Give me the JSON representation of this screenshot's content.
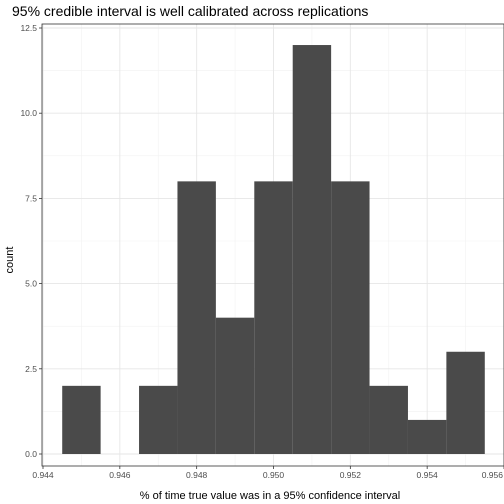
{
  "chart_data": {
    "type": "bar",
    "title": "95% credible interval is well calibrated across replications",
    "xlabel": "% of time true value was in a 95% confidence interval",
    "ylabel": "count",
    "xlim": [
      0.944,
      0.956
    ],
    "ylim": [
      0,
      12.5
    ],
    "x_ticks": [
      "0.944",
      "0.946",
      "0.948",
      "0.950",
      "0.952",
      "0.954",
      "0.956"
    ],
    "x_tick_values": [
      0.944,
      0.946,
      0.948,
      0.95,
      0.952,
      0.954,
      0.956
    ],
    "y_ticks": [
      "0.0",
      "2.5",
      "5.0",
      "7.5",
      "10.0",
      "12.5"
    ],
    "y_tick_values": [
      0.0,
      2.5,
      5.0,
      7.5,
      10.0,
      12.5
    ],
    "bins": [
      {
        "start": 0.9445,
        "end": 0.9455,
        "count": 2
      },
      {
        "start": 0.9455,
        "end": 0.9465,
        "count": 0
      },
      {
        "start": 0.9465,
        "end": 0.9475,
        "count": 2
      },
      {
        "start": 0.9475,
        "end": 0.9485,
        "count": 8
      },
      {
        "start": 0.9485,
        "end": 0.9495,
        "count": 4
      },
      {
        "start": 0.9495,
        "end": 0.9505,
        "count": 8
      },
      {
        "start": 0.9505,
        "end": 0.9515,
        "count": 12
      },
      {
        "start": 0.9515,
        "end": 0.9525,
        "count": 8
      },
      {
        "start": 0.9525,
        "end": 0.9535,
        "count": 2
      },
      {
        "start": 0.9535,
        "end": 0.9545,
        "count": 1
      },
      {
        "start": 0.9545,
        "end": 0.9555,
        "count": 3
      }
    ],
    "bar_color": "#4a4a4a",
    "grid": true,
    "legend": "none"
  }
}
